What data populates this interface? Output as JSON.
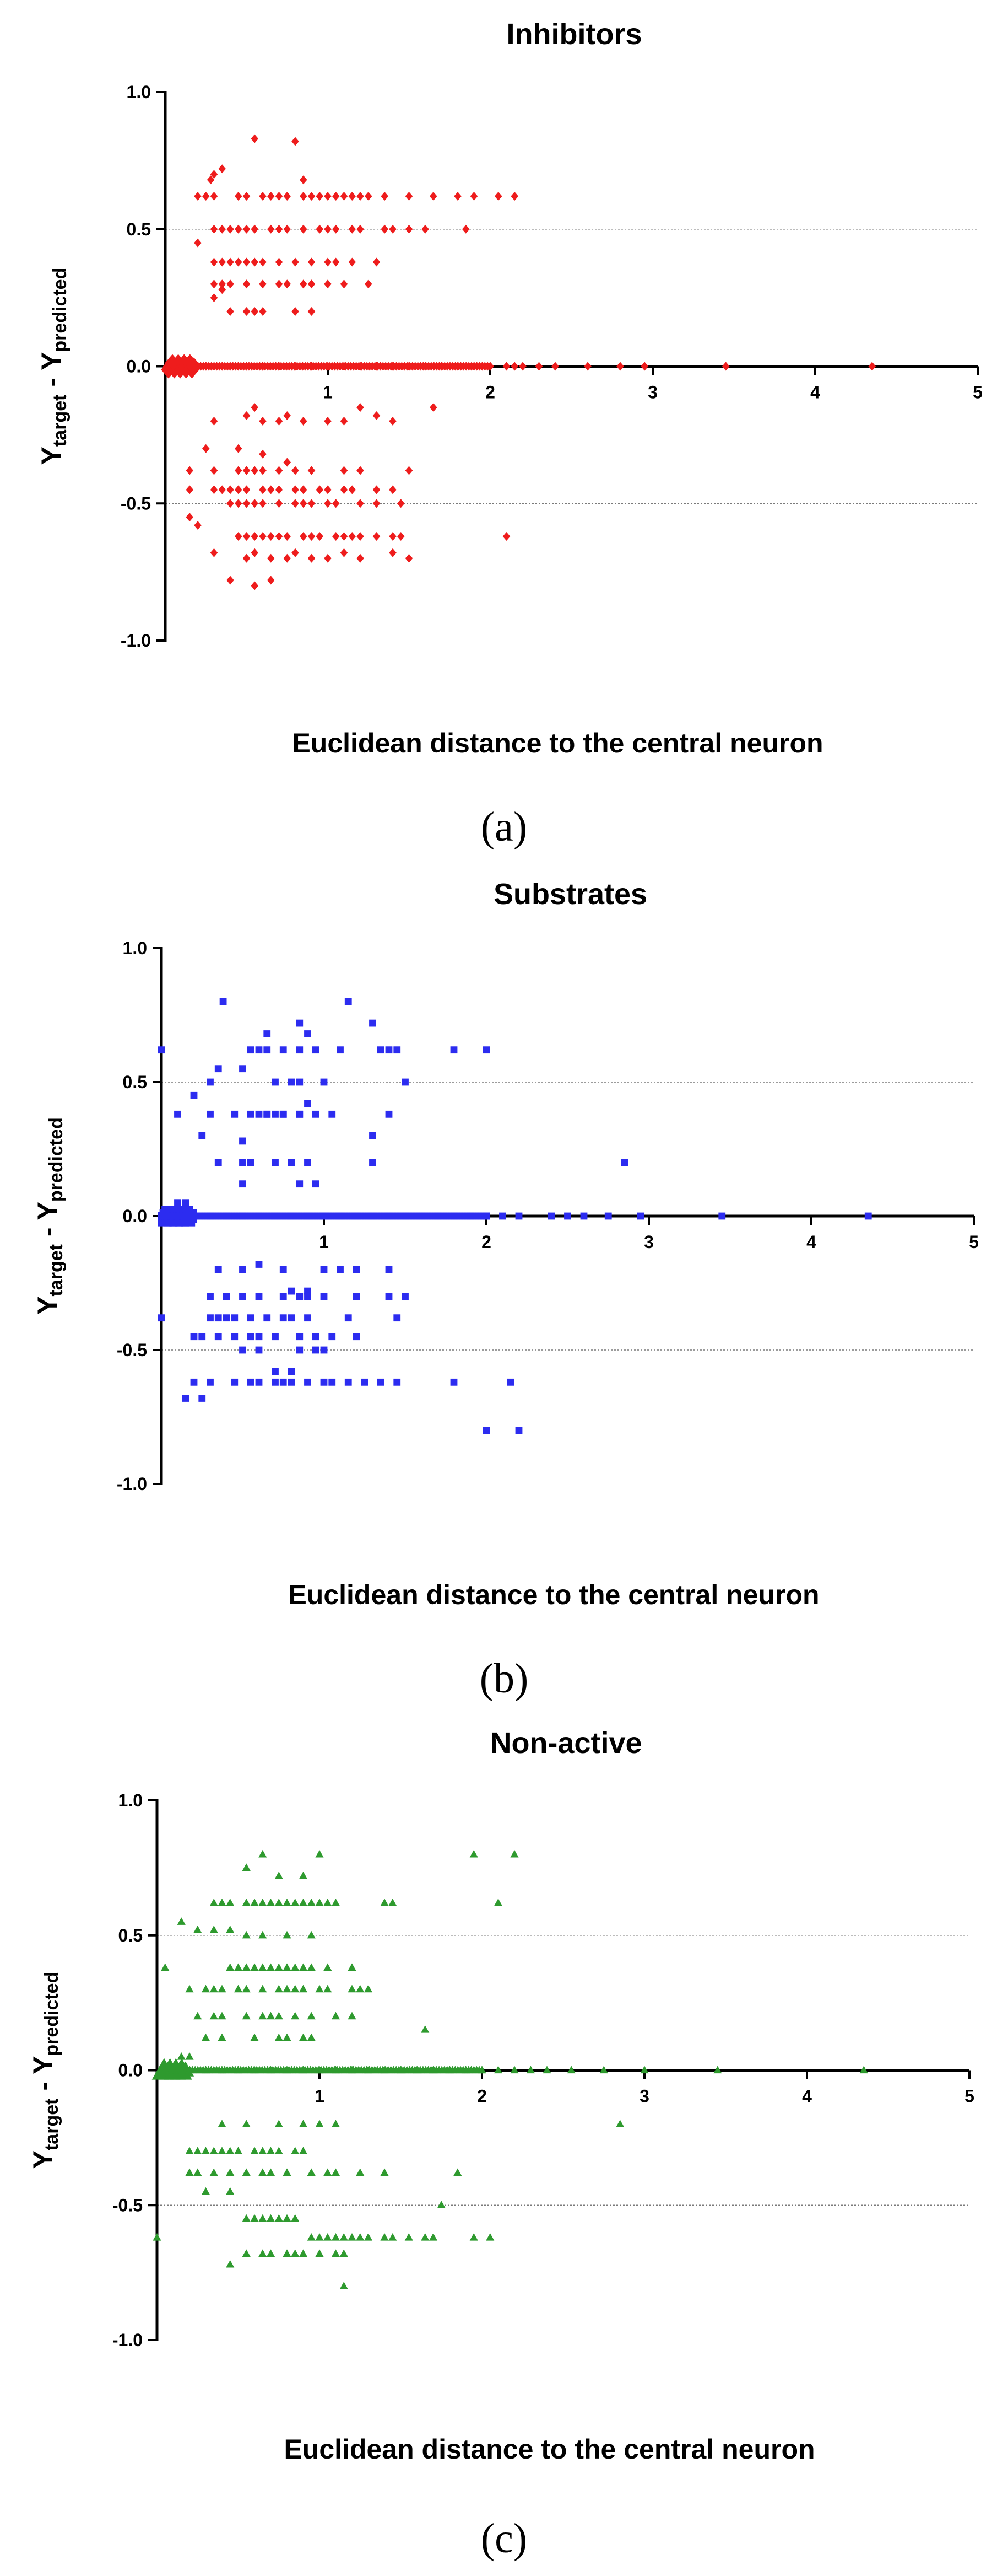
{
  "figure": {
    "captions": [
      "(a)",
      "(b)",
      "(c)"
    ]
  },
  "chart_data": [
    {
      "type": "scatter",
      "panel": "a",
      "title": "Inhibitors",
      "xlabel": "Euclidean distance to the central neuron",
      "ylabel_main": "Y",
      "ylabel_sub1": "target",
      "ylabel_mid": " - Y",
      "ylabel_sub2": "predicted",
      "xlim": [
        0,
        5
      ],
      "ylim": [
        -1.0,
        1.0
      ],
      "x_ticks": [
        1,
        2,
        3,
        4,
        5
      ],
      "x_tick_labels": [
        "1",
        "2",
        "3",
        "4",
        "5"
      ],
      "y_ticks": [
        1.0,
        0.5,
        0.0,
        -0.5,
        -1.0
      ],
      "y_tick_labels": [
        "1.0",
        "0.5",
        "0.0",
        "-0.5",
        "-1.0"
      ],
      "reference_lines": [
        0.5,
        -0.5
      ],
      "color": "#ee1c1c",
      "marker": "diamond",
      "x": [
        0.35,
        0.3,
        0.28,
        0.25,
        0.3,
        0.2,
        0.2,
        0.55,
        0.8,
        0.85,
        0.5,
        0.9,
        0.95,
        1.0,
        1.1,
        1.25,
        1.5,
        1.65,
        1.8,
        1.9,
        2.05,
        2.15,
        0.45,
        0.6,
        0.65,
        0.7,
        0.75,
        0.85,
        1.05,
        1.15,
        1.2,
        1.35,
        0.3,
        0.35,
        0.4,
        0.45,
        0.5,
        0.55,
        0.65,
        0.7,
        0.75,
        0.85,
        0.95,
        1.0,
        1.05,
        1.15,
        1.2,
        1.35,
        1.4,
        1.5,
        1.6,
        1.85,
        0.3,
        0.35,
        0.4,
        0.45,
        0.5,
        0.55,
        0.6,
        0.7,
        0.8,
        0.9,
        1.0,
        1.05,
        1.15,
        1.3,
        0.3,
        0.35,
        0.4,
        0.5,
        0.6,
        0.7,
        0.75,
        0.85,
        0.9,
        1.0,
        1.1,
        1.25,
        0.4,
        0.5,
        0.55,
        0.6,
        0.8,
        0.9,
        0.3,
        0.35,
        0.3,
        0.5,
        0.55,
        0.6,
        0.7,
        0.75,
        0.85,
        1.0,
        1.1,
        1.2,
        1.3,
        1.4,
        0.25,
        0.15,
        0.3,
        0.45,
        0.5,
        0.55,
        0.6,
        0.7,
        0.8,
        0.9,
        1.1,
        1.2,
        1.5,
        1.65,
        0.15,
        0.3,
        0.35,
        0.4,
        0.45,
        0.5,
        0.6,
        0.65,
        0.7,
        0.8,
        0.85,
        0.95,
        1.0,
        1.1,
        1.15,
        1.3,
        1.4,
        0.4,
        0.45,
        0.5,
        0.55,
        0.6,
        0.7,
        0.8,
        0.85,
        0.9,
        1.0,
        1.05,
        1.2,
        1.3,
        1.45,
        0.45,
        0.5,
        0.55,
        0.6,
        0.65,
        0.7,
        0.75,
        0.85,
        0.9,
        0.95,
        1.05,
        1.1,
        1.15,
        1.2,
        1.3,
        1.4,
        1.45,
        0.15,
        0.2,
        0.3,
        0.5,
        0.55,
        0.65,
        0.75,
        0.8,
        0.9,
        1.0,
        1.1,
        1.2,
        1.4,
        1.5,
        2.1,
        0.4,
        0.55,
        0.65,
        0.45,
        0.6,
        0.75,
        0.05,
        0.1,
        0.15,
        0.2,
        0.25,
        0.3,
        0.35,
        0.4,
        0.5,
        0.6,
        0.7,
        0.8,
        0.9,
        1.0,
        1.1,
        1.2,
        1.3,
        1.4,
        1.5,
        1.6,
        1.7,
        1.8,
        1.9,
        2.0,
        2.1,
        2.15,
        2.2,
        2.3,
        2.4,
        2.6,
        2.8,
        2.95,
        3.45,
        4.35
      ],
      "y": [
        0.72,
        0.7,
        0.68,
        0.62,
        0.62,
        0.62,
        0.45,
        0.83,
        0.82,
        0.68,
        0.62,
        0.62,
        0.62,
        0.62,
        0.62,
        0.62,
        0.62,
        0.62,
        0.62,
        0.62,
        0.62,
        0.62,
        0.62,
        0.62,
        0.62,
        0.62,
        0.62,
        0.62,
        0.62,
        0.62,
        0.62,
        0.62,
        0.5,
        0.5,
        0.5,
        0.5,
        0.5,
        0.5,
        0.5,
        0.5,
        0.5,
        0.5,
        0.5,
        0.5,
        0.5,
        0.5,
        0.5,
        0.5,
        0.5,
        0.5,
        0.5,
        0.5,
        0.38,
        0.38,
        0.38,
        0.38,
        0.38,
        0.38,
        0.38,
        0.38,
        0.38,
        0.38,
        0.38,
        0.38,
        0.38,
        0.38,
        0.3,
        0.3,
        0.3,
        0.3,
        0.3,
        0.3,
        0.3,
        0.3,
        0.3,
        0.3,
        0.3,
        0.3,
        0.2,
        0.2,
        0.2,
        0.2,
        0.2,
        0.2,
        0.25,
        0.28,
        -0.2,
        -0.18,
        -0.15,
        -0.2,
        -0.2,
        -0.18,
        -0.2,
        -0.2,
        -0.2,
        -0.15,
        -0.18,
        -0.2,
        -0.3,
        -0.38,
        -0.38,
        -0.38,
        -0.38,
        -0.38,
        -0.38,
        -0.38,
        -0.38,
        -0.38,
        -0.38,
        -0.38,
        -0.38,
        -0.15,
        -0.45,
        -0.45,
        -0.45,
        -0.45,
        -0.45,
        -0.45,
        -0.45,
        -0.45,
        -0.45,
        -0.45,
        -0.45,
        -0.45,
        -0.45,
        -0.45,
        -0.45,
        -0.45,
        -0.45,
        -0.5,
        -0.5,
        -0.5,
        -0.5,
        -0.5,
        -0.5,
        -0.5,
        -0.5,
        -0.5,
        -0.5,
        -0.5,
        -0.5,
        -0.5,
        -0.5,
        -0.62,
        -0.62,
        -0.62,
        -0.62,
        -0.62,
        -0.62,
        -0.62,
        -0.62,
        -0.62,
        -0.62,
        -0.62,
        -0.62,
        -0.62,
        -0.62,
        -0.62,
        -0.62,
        -0.62,
        -0.55,
        -0.58,
        -0.68,
        -0.7,
        -0.68,
        -0.7,
        -0.7,
        -0.68,
        -0.7,
        -0.7,
        -0.68,
        -0.7,
        -0.68,
        -0.7,
        -0.62,
        -0.78,
        -0.8,
        -0.78,
        -0.3,
        -0.32,
        -0.35,
        0,
        0,
        0,
        0,
        0,
        0,
        0,
        0,
        0,
        0,
        0,
        0,
        0,
        0,
        0,
        0,
        0,
        0,
        0,
        0,
        0,
        0,
        0,
        0,
        0,
        0,
        0,
        0,
        0,
        0,
        0,
        0,
        0,
        0
      ],
      "cluster_at_origin": true
    },
    {
      "type": "scatter",
      "panel": "b",
      "title": "Substrates",
      "xlabel": "Euclidean distance to the central neuron",
      "ylabel_main": "Y",
      "ylabel_sub1": "target",
      "ylabel_mid": " - Y",
      "ylabel_sub2": "predicted",
      "xlim": [
        0,
        5
      ],
      "ylim": [
        -1.0,
        1.0
      ],
      "x_ticks": [
        1,
        2,
        3,
        4,
        5
      ],
      "x_tick_labels": [
        "1",
        "2",
        "3",
        "4",
        "5"
      ],
      "y_ticks": [
        1.0,
        0.5,
        0.0,
        -0.5,
        -1.0
      ],
      "y_tick_labels": [
        "1.0",
        "0.5",
        "0.0",
        "-0.5",
        "-1.0"
      ],
      "reference_lines": [
        0.5,
        -0.5
      ],
      "color": "#2c2cf0",
      "marker": "square",
      "x": [
        0.38,
        1.15,
        0.85,
        1.3,
        0.65,
        0.9,
        0.55,
        0.6,
        0.65,
        0.75,
        0.85,
        0.95,
        1.1,
        1.35,
        1.4,
        1.45,
        1.8,
        2.0,
        0.0,
        0.3,
        0.35,
        0.5,
        0.7,
        0.8,
        0.85,
        1.0,
        1.5,
        0.2,
        0.3,
        0.45,
        0.55,
        0.65,
        0.75,
        0.85,
        0.95,
        1.05,
        1.4,
        0.1,
        0.25,
        0.5,
        0.6,
        0.65,
        0.7,
        0.75,
        0.85,
        0.9,
        1.3,
        0.35,
        0.5,
        0.55,
        0.7,
        0.8,
        0.9,
        1.3,
        0.5,
        0.85,
        0.95,
        2.85,
        0.15,
        0.1,
        0.35,
        0.5,
        0.6,
        0.75,
        0.8,
        0.9,
        1.0,
        1.1,
        1.2,
        1.4,
        0.3,
        0.4,
        0.5,
        0.6,
        0.75,
        0.85,
        0.9,
        1.0,
        1.2,
        1.4,
        1.5,
        0.3,
        0.35,
        0.4,
        0.45,
        0.55,
        0.65,
        0.75,
        0.8,
        0.9,
        1.15,
        1.45,
        0.0,
        0.2,
        0.25,
        0.35,
        0.45,
        0.55,
        0.6,
        0.7,
        0.85,
        0.95,
        1.05,
        1.2,
        0.2,
        0.3,
        0.45,
        0.55,
        0.6,
        0.7,
        0.75,
        0.8,
        0.9,
        1.0,
        1.05,
        1.15,
        1.25,
        1.35,
        1.45,
        1.8,
        2.15,
        0.15,
        0.25,
        0.5,
        0.6,
        0.85,
        0.95,
        1.0,
        0.7,
        0.8,
        2.0,
        2.2,
        0.05,
        0.1,
        0.15,
        0.2,
        0.3,
        0.4,
        0.5,
        0.6,
        0.7,
        0.8,
        0.9,
        1.0,
        1.1,
        1.2,
        1.3,
        1.4,
        1.5,
        1.6,
        1.7,
        1.8,
        1.9,
        2.0,
        2.1,
        2.2,
        2.4,
        2.5,
        2.6,
        2.75,
        2.95,
        3.45,
        4.35
      ],
      "y": [
        0.8,
        0.8,
        0.72,
        0.72,
        0.68,
        0.68,
        0.62,
        0.62,
        0.62,
        0.62,
        0.62,
        0.62,
        0.62,
        0.62,
        0.62,
        0.62,
        0.62,
        0.62,
        0.62,
        0.5,
        0.55,
        0.55,
        0.5,
        0.5,
        0.5,
        0.5,
        0.5,
        0.45,
        0.38,
        0.38,
        0.38,
        0.38,
        0.38,
        0.38,
        0.38,
        0.38,
        0.38,
        0.38,
        0.3,
        0.28,
        0.38,
        0.38,
        0.38,
        0.38,
        0.38,
        0.42,
        0.3,
        0.2,
        0.2,
        0.2,
        0.2,
        0.2,
        0.2,
        0.2,
        0.12,
        0.12,
        0.12,
        0.2,
        0.05,
        0.05,
        -0.2,
        -0.2,
        -0.18,
        -0.2,
        -0.28,
        -0.28,
        -0.2,
        -0.2,
        -0.2,
        -0.2,
        -0.3,
        -0.3,
        -0.3,
        -0.3,
        -0.3,
        -0.3,
        -0.3,
        -0.3,
        -0.3,
        -0.3,
        -0.3,
        -0.38,
        -0.38,
        -0.38,
        -0.38,
        -0.38,
        -0.38,
        -0.38,
        -0.38,
        -0.38,
        -0.38,
        -0.38,
        -0.38,
        -0.45,
        -0.45,
        -0.45,
        -0.45,
        -0.45,
        -0.45,
        -0.45,
        -0.45,
        -0.45,
        -0.45,
        -0.45,
        -0.62,
        -0.62,
        -0.62,
        -0.62,
        -0.62,
        -0.62,
        -0.62,
        -0.62,
        -0.62,
        -0.62,
        -0.62,
        -0.62,
        -0.62,
        -0.62,
        -0.62,
        -0.62,
        -0.62,
        -0.68,
        -0.68,
        -0.5,
        -0.5,
        -0.5,
        -0.5,
        -0.5,
        -0.58,
        -0.58,
        -0.8,
        -0.8,
        0,
        0,
        0,
        0,
        0,
        0,
        0,
        0,
        0,
        0,
        0,
        0,
        0,
        0,
        0,
        0,
        0,
        0,
        0,
        0,
        0,
        0,
        0,
        0,
        0,
        0,
        0,
        0,
        0,
        0,
        0
      ],
      "cluster_at_origin": true
    },
    {
      "type": "scatter",
      "panel": "c",
      "title": "Non-active",
      "xlabel": "Euclidean distance to the central neuron",
      "ylabel_main": "Y",
      "ylabel_sub1": "target",
      "ylabel_mid": " - Y",
      "ylabel_sub2": "predicted",
      "xlim": [
        0,
        5
      ],
      "ylim": [
        -1.0,
        1.0
      ],
      "x_ticks": [
        1,
        2,
        3,
        4,
        5
      ],
      "x_tick_labels": [
        "1",
        "2",
        "3",
        "4",
        "5"
      ],
      "y_ticks": [
        1.0,
        0.5,
        0.0,
        -0.5,
        -1.0
      ],
      "y_tick_labels": [
        "1.0",
        "0.5",
        "0.0",
        "-0.5",
        "-1.0"
      ],
      "reference_lines": [
        0.5,
        -0.5
      ],
      "color": "#2e9a2e",
      "marker": "triangle",
      "x": [
        0.65,
        1.0,
        1.95,
        2.2,
        0.55,
        0.75,
        0.9,
        0.35,
        0.4,
        0.45,
        0.55,
        0.6,
        0.65,
        0.7,
        0.75,
        0.8,
        0.85,
        0.9,
        0.95,
        1.0,
        1.05,
        1.1,
        1.4,
        1.45,
        2.1,
        0.35,
        0.45,
        0.55,
        0.65,
        0.8,
        0.95,
        0.15,
        0.25,
        0.05,
        0.45,
        0.5,
        0.55,
        0.6,
        0.65,
        0.7,
        0.75,
        0.8,
        0.85,
        0.9,
        0.95,
        1.05,
        1.2,
        0.2,
        0.3,
        0.35,
        0.4,
        0.5,
        0.55,
        0.65,
        0.75,
        0.8,
        0.85,
        0.9,
        1.0,
        1.05,
        1.2,
        1.25,
        1.3,
        0.25,
        0.35,
        0.4,
        0.55,
        0.65,
        0.7,
        0.75,
        0.85,
        0.95,
        1.1,
        1.2,
        0.3,
        0.4,
        0.6,
        0.75,
        0.8,
        0.9,
        0.95,
        1.65,
        0.15,
        0.2,
        2.85,
        0.4,
        0.55,
        0.75,
        0.9,
        1.0,
        1.1,
        0.2,
        0.25,
        0.3,
        0.35,
        0.4,
        0.45,
        0.5,
        0.6,
        0.65,
        0.7,
        0.75,
        0.85,
        0.9,
        0.2,
        0.25,
        0.35,
        0.45,
        0.55,
        0.65,
        0.7,
        0.8,
        0.95,
        1.05,
        1.1,
        1.25,
        1.4,
        1.85,
        0.3,
        0.45,
        1.75,
        0.55,
        0.6,
        0.65,
        0.7,
        0.75,
        0.8,
        0.85,
        0.95,
        1.0,
        1.05,
        1.1,
        1.15,
        1.2,
        1.25,
        1.3,
        1.4,
        1.45,
        1.55,
        1.65,
        1.7,
        1.95,
        2.05,
        0.0,
        0.55,
        0.65,
        0.7,
        0.8,
        0.85,
        0.9,
        1.0,
        1.1,
        1.15,
        0.45,
        1.15,
        0.05,
        0.1,
        0.15,
        0.2,
        0.3,
        0.4,
        0.5,
        0.6,
        0.7,
        0.8,
        0.9,
        1.0,
        1.1,
        1.2,
        1.3,
        1.4,
        1.5,
        1.6,
        1.7,
        1.8,
        1.9,
        2.0,
        2.1,
        2.2,
        2.3,
        2.4,
        2.55,
        2.75,
        3.0,
        3.45,
        4.35
      ],
      "y": [
        0.8,
        0.8,
        0.8,
        0.8,
        0.75,
        0.72,
        0.72,
        0.62,
        0.62,
        0.62,
        0.62,
        0.62,
        0.62,
        0.62,
        0.62,
        0.62,
        0.62,
        0.62,
        0.62,
        0.62,
        0.62,
        0.62,
        0.62,
        0.62,
        0.62,
        0.52,
        0.52,
        0.5,
        0.5,
        0.5,
        0.5,
        0.55,
        0.52,
        0.38,
        0.38,
        0.38,
        0.38,
        0.38,
        0.38,
        0.38,
        0.38,
        0.38,
        0.38,
        0.38,
        0.38,
        0.38,
        0.38,
        0.3,
        0.3,
        0.3,
        0.3,
        0.3,
        0.3,
        0.3,
        0.3,
        0.3,
        0.3,
        0.3,
        0.3,
        0.3,
        0.3,
        0.3,
        0.3,
        0.2,
        0.2,
        0.2,
        0.2,
        0.2,
        0.2,
        0.2,
        0.2,
        0.2,
        0.2,
        0.2,
        0.12,
        0.12,
        0.12,
        0.12,
        0.12,
        0.12,
        0.12,
        0.15,
        0.05,
        0.05,
        -0.2,
        -0.2,
        -0.2,
        -0.2,
        -0.2,
        -0.2,
        -0.2,
        -0.3,
        -0.3,
        -0.3,
        -0.3,
        -0.3,
        -0.3,
        -0.3,
        -0.3,
        -0.3,
        -0.3,
        -0.3,
        -0.3,
        -0.3,
        -0.38,
        -0.38,
        -0.38,
        -0.38,
        -0.38,
        -0.38,
        -0.38,
        -0.38,
        -0.38,
        -0.38,
        -0.38,
        -0.38,
        -0.38,
        -0.38,
        -0.45,
        -0.45,
        -0.5,
        -0.55,
        -0.55,
        -0.55,
        -0.55,
        -0.55,
        -0.55,
        -0.55,
        -0.62,
        -0.62,
        -0.62,
        -0.62,
        -0.62,
        -0.62,
        -0.62,
        -0.62,
        -0.62,
        -0.62,
        -0.62,
        -0.62,
        -0.62,
        -0.62,
        -0.62,
        -0.62,
        -0.68,
        -0.68,
        -0.68,
        -0.68,
        -0.68,
        -0.68,
        -0.68,
        -0.68,
        -0.68,
        -0.72,
        -0.8,
        0,
        0,
        0,
        0,
        0,
        0,
        0,
        0,
        0,
        0,
        0,
        0,
        0,
        0,
        0,
        0,
        0,
        0,
        0,
        0,
        0,
        0,
        0,
        0,
        0,
        0,
        0,
        0,
        0,
        0,
        0
      ],
      "cluster_at_origin": true
    }
  ]
}
